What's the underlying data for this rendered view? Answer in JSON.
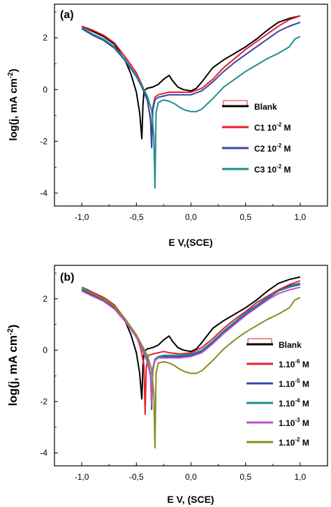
{
  "chart_data": [
    {
      "type": "line",
      "panel_label": "(a)",
      "xlabel": "E V,(SCE)",
      "ylabel_main": "log(j, mA cm",
      "ylabel_sup": "-2",
      "ylabel_end": ")",
      "xlim": [
        -1.25,
        1.25
      ],
      "ylim": [
        -4.5,
        3.3
      ],
      "xticks": [
        -1.0,
        -0.5,
        0.0,
        0.5,
        1.0
      ],
      "xtick_labels": [
        "-1,0",
        "-0,5",
        "0,0",
        "0,5",
        "1,0"
      ],
      "yticks": [
        -4,
        -2,
        0,
        2
      ],
      "ytick_labels": [
        "-4",
        "-2",
        "0",
        "2"
      ],
      "legend_position": "right",
      "series": [
        {
          "name": "Blank",
          "label_main": "Blank",
          "label_sup": "",
          "label_end": "",
          "color": "#000000",
          "x": [
            -1.0,
            -0.9,
            -0.8,
            -0.7,
            -0.6,
            -0.55,
            -0.5,
            -0.47,
            -0.45,
            -0.44,
            -0.43,
            -0.4,
            -0.35,
            -0.3,
            -0.25,
            -0.2,
            -0.17,
            -0.12,
            -0.07,
            0.0,
            0.05,
            0.1,
            0.2,
            0.3,
            0.4,
            0.5,
            0.6,
            0.7,
            0.8,
            0.9,
            1.0
          ],
          "y": [
            2.45,
            2.25,
            2.05,
            1.75,
            1.1,
            0.6,
            -0.1,
            -0.9,
            -1.9,
            -0.6,
            -0.05,
            0.05,
            0.1,
            0.2,
            0.4,
            0.55,
            0.35,
            0.1,
            0.0,
            -0.05,
            0.05,
            0.3,
            0.85,
            1.15,
            1.4,
            1.65,
            1.95,
            2.3,
            2.6,
            2.75,
            2.85
          ]
        },
        {
          "name": "C1 10-2 M",
          "label_main": "C1 10",
          "label_sup": "-2",
          "label_end": " M",
          "color": "#e8202a",
          "x": [
            -1.0,
            -0.9,
            -0.8,
            -0.7,
            -0.6,
            -0.5,
            -0.45,
            -0.4,
            -0.37,
            -0.36,
            -0.35,
            -0.33,
            -0.3,
            -0.25,
            -0.2,
            -0.15,
            -0.1,
            0.0,
            0.1,
            0.2,
            0.3,
            0.4,
            0.5,
            0.6,
            0.7,
            0.8,
            0.9,
            1.0
          ],
          "y": [
            2.45,
            2.3,
            2.1,
            1.8,
            1.25,
            0.65,
            0.2,
            -0.35,
            -1.2,
            -2.2,
            -0.7,
            -0.3,
            -0.2,
            -0.15,
            -0.1,
            -0.1,
            -0.1,
            -0.1,
            0.05,
            0.4,
            0.85,
            1.2,
            1.55,
            1.85,
            2.15,
            2.45,
            2.7,
            2.85
          ]
        },
        {
          "name": "C2 10-2 M",
          "label_main": "C2 10",
          "label_sup": "-2",
          "label_end": " M",
          "color": "#3545ad",
          "x": [
            -1.0,
            -0.9,
            -0.8,
            -0.7,
            -0.6,
            -0.5,
            -0.45,
            -0.4,
            -0.37,
            -0.36,
            -0.35,
            -0.33,
            -0.3,
            -0.25,
            -0.2,
            -0.15,
            -0.1,
            0.0,
            0.1,
            0.2,
            0.3,
            0.4,
            0.5,
            0.6,
            0.7,
            0.8,
            0.9,
            1.0
          ],
          "y": [
            2.35,
            2.1,
            1.9,
            1.6,
            1.1,
            0.5,
            0.1,
            -0.4,
            -1.1,
            -2.25,
            -0.8,
            -0.4,
            -0.3,
            -0.25,
            -0.2,
            -0.2,
            -0.2,
            -0.2,
            -0.05,
            0.3,
            0.7,
            1.05,
            1.35,
            1.65,
            1.95,
            2.25,
            2.45,
            2.6
          ]
        },
        {
          "name": "C3 10-2 M",
          "label_main": "C3 10",
          "label_sup": "-2",
          "label_end": " M",
          "color": "#1d8f8a",
          "x": [
            -1.0,
            -0.9,
            -0.8,
            -0.7,
            -0.6,
            -0.5,
            -0.45,
            -0.4,
            -0.36,
            -0.34,
            -0.33,
            -0.32,
            -0.3,
            -0.25,
            -0.2,
            -0.15,
            -0.1,
            -0.05,
            0.0,
            0.05,
            0.1,
            0.2,
            0.3,
            0.4,
            0.5,
            0.6,
            0.7,
            0.8,
            0.9,
            0.95,
            1.0
          ],
          "y": [
            2.4,
            2.15,
            1.95,
            1.65,
            1.15,
            0.55,
            0.15,
            -0.25,
            -0.8,
            -1.8,
            -3.8,
            -0.9,
            -0.5,
            -0.4,
            -0.45,
            -0.55,
            -0.7,
            -0.8,
            -0.85,
            -0.85,
            -0.75,
            -0.35,
            0.1,
            0.4,
            0.7,
            0.95,
            1.2,
            1.4,
            1.65,
            1.95,
            2.05
          ]
        }
      ]
    },
    {
      "type": "line",
      "panel_label": "(b)",
      "xlabel": "E V, (SCE)",
      "ylabel_main": "log(j, mA cm",
      "ylabel_sup": "-2",
      "ylabel_end": ")",
      "xlim": [
        -1.25,
        1.25
      ],
      "ylim": [
        -4.5,
        3.3
      ],
      "xticks": [
        -1.0,
        -0.5,
        0.0,
        0.5,
        1.0
      ],
      "xtick_labels": [
        "-1,0",
        "-0,5",
        "0,0",
        "0,5",
        "1,0"
      ],
      "yticks": [
        -4,
        -2,
        0,
        2
      ],
      "ytick_labels": [
        "-4",
        "-2",
        "0",
        "2"
      ],
      "legend_position": "right",
      "series": [
        {
          "name": "Blank",
          "label_main": "Blank",
          "label_sup": "",
          "label_end": "",
          "color": "#000000",
          "x": [
            -1.0,
            -0.9,
            -0.8,
            -0.7,
            -0.6,
            -0.55,
            -0.5,
            -0.47,
            -0.45,
            -0.44,
            -0.43,
            -0.4,
            -0.35,
            -0.3,
            -0.25,
            -0.2,
            -0.17,
            -0.12,
            -0.07,
            0.0,
            0.05,
            0.1,
            0.2,
            0.3,
            0.4,
            0.5,
            0.6,
            0.7,
            0.8,
            0.9,
            1.0
          ],
          "y": [
            2.45,
            2.25,
            2.05,
            1.75,
            1.1,
            0.6,
            -0.1,
            -0.9,
            -1.9,
            -0.6,
            -0.05,
            0.05,
            0.1,
            0.2,
            0.4,
            0.55,
            0.35,
            0.1,
            0.0,
            -0.05,
            0.05,
            0.3,
            0.85,
            1.15,
            1.4,
            1.65,
            1.95,
            2.3,
            2.6,
            2.75,
            2.85
          ]
        },
        {
          "name": "1.10-6 M",
          "label_main": "1.10",
          "label_sup": "-6",
          "label_end": " M",
          "color": "#e8202a",
          "x": [
            -1.0,
            -0.9,
            -0.8,
            -0.7,
            -0.6,
            -0.5,
            -0.46,
            -0.43,
            -0.42,
            -0.41,
            -0.39,
            -0.35,
            -0.3,
            -0.25,
            -0.2,
            -0.1,
            0.0,
            0.1,
            0.2,
            0.3,
            0.4,
            0.5,
            0.6,
            0.7,
            0.8,
            0.9,
            1.0
          ],
          "y": [
            2.4,
            2.25,
            2.05,
            1.75,
            1.2,
            0.55,
            0.05,
            -0.6,
            -2.5,
            -0.7,
            -0.2,
            -0.15,
            -0.1,
            -0.05,
            -0.1,
            -0.15,
            -0.1,
            0.1,
            0.45,
            0.85,
            1.2,
            1.5,
            1.85,
            2.1,
            2.35,
            2.55,
            2.7
          ]
        },
        {
          "name": "1.10-5 M",
          "label_main": "1.10",
          "label_sup": "-5",
          "label_end": " M",
          "color": "#3545ad",
          "x": [
            -1.0,
            -0.9,
            -0.8,
            -0.7,
            -0.6,
            -0.5,
            -0.45,
            -0.4,
            -0.37,
            -0.36,
            -0.35,
            -0.33,
            -0.3,
            -0.25,
            -0.2,
            -0.1,
            0.0,
            0.1,
            0.2,
            0.3,
            0.4,
            0.5,
            0.6,
            0.7,
            0.8,
            0.9,
            1.0
          ],
          "y": [
            2.35,
            2.15,
            1.95,
            1.65,
            1.15,
            0.5,
            0.1,
            -0.4,
            -1.0,
            -2.3,
            -0.8,
            -0.4,
            -0.3,
            -0.25,
            -0.25,
            -0.25,
            -0.2,
            -0.05,
            0.3,
            0.7,
            1.05,
            1.4,
            1.7,
            2.0,
            2.3,
            2.5,
            2.6
          ]
        },
        {
          "name": "1.10-4 M",
          "label_main": "1.10",
          "label_sup": "-4",
          "label_end": " M",
          "color": "#1d8f8a",
          "x": [
            -1.0,
            -0.9,
            -0.8,
            -0.7,
            -0.6,
            -0.5,
            -0.45,
            -0.4,
            -0.37,
            -0.36,
            -0.35,
            -0.33,
            -0.3,
            -0.25,
            -0.2,
            -0.1,
            0.0,
            0.1,
            0.2,
            0.3,
            0.4,
            0.5,
            0.6,
            0.7,
            0.8,
            0.9,
            1.0
          ],
          "y": [
            2.4,
            2.2,
            2.0,
            1.7,
            1.2,
            0.55,
            0.1,
            -0.35,
            -0.9,
            -2.2,
            -0.7,
            -0.35,
            -0.25,
            -0.2,
            -0.2,
            -0.2,
            -0.15,
            0.0,
            0.35,
            0.75,
            1.1,
            1.45,
            1.75,
            2.05,
            2.3,
            2.45,
            2.55
          ]
        },
        {
          "name": "1.10-3 M",
          "label_main": "1.10",
          "label_sup": "-3",
          "label_end": " M",
          "color": "#c34fd1",
          "x": [
            -1.0,
            -0.9,
            -0.8,
            -0.7,
            -0.6,
            -0.5,
            -0.45,
            -0.4,
            -0.37,
            -0.36,
            -0.35,
            -0.33,
            -0.3,
            -0.25,
            -0.2,
            -0.1,
            0.0,
            0.1,
            0.2,
            0.3,
            0.4,
            0.5,
            0.6,
            0.7,
            0.8,
            0.9,
            1.0
          ],
          "y": [
            2.3,
            2.1,
            1.9,
            1.6,
            1.1,
            0.5,
            0.05,
            -0.45,
            -1.0,
            -2.1,
            -0.75,
            -0.4,
            -0.3,
            -0.3,
            -0.3,
            -0.3,
            -0.25,
            -0.1,
            0.25,
            0.65,
            1.0,
            1.35,
            1.65,
            1.95,
            2.2,
            2.35,
            2.45
          ]
        },
        {
          "name": "1.10-2 M",
          "label_main": "1.10",
          "label_sup": "-2",
          "label_end": " M",
          "color": "#8a8c1c",
          "x": [
            -1.0,
            -0.9,
            -0.8,
            -0.7,
            -0.6,
            -0.5,
            -0.45,
            -0.4,
            -0.36,
            -0.34,
            -0.33,
            -0.32,
            -0.3,
            -0.25,
            -0.2,
            -0.15,
            -0.1,
            -0.05,
            0.0,
            0.05,
            0.1,
            0.2,
            0.3,
            0.4,
            0.5,
            0.6,
            0.7,
            0.8,
            0.9,
            0.95,
            1.0
          ],
          "y": [
            2.45,
            2.2,
            2.0,
            1.7,
            1.2,
            0.6,
            0.2,
            -0.2,
            -0.75,
            -1.7,
            -3.8,
            -0.9,
            -0.5,
            -0.45,
            -0.5,
            -0.6,
            -0.75,
            -0.85,
            -0.9,
            -0.9,
            -0.8,
            -0.4,
            0.05,
            0.4,
            0.7,
            0.95,
            1.2,
            1.4,
            1.65,
            1.95,
            2.05
          ]
        }
      ]
    }
  ]
}
